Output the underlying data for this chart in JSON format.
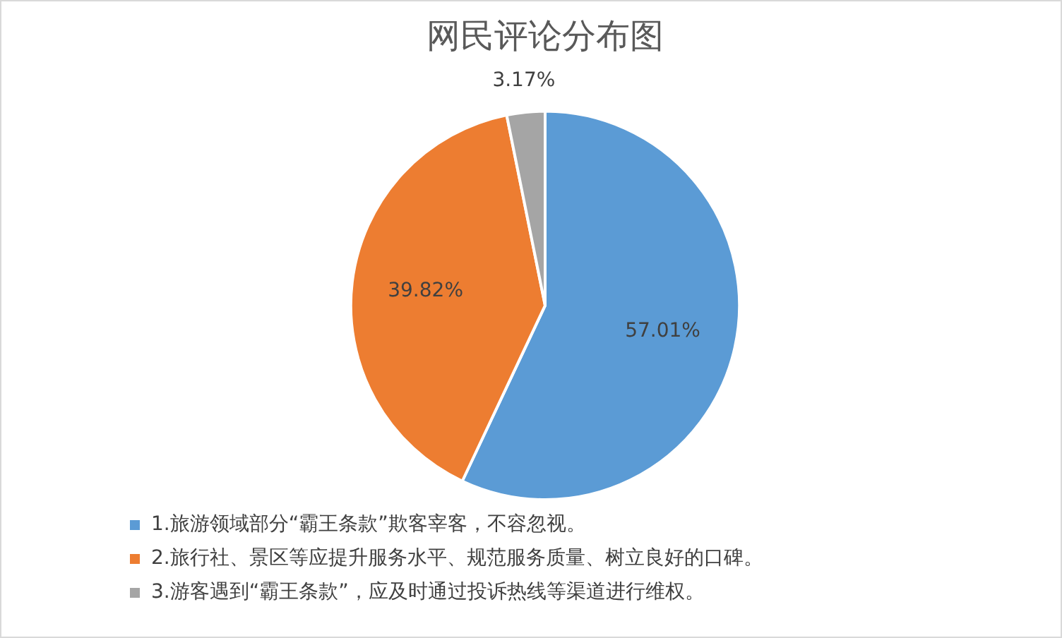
{
  "chart_data": {
    "type": "pie",
    "title": "网民评论分布图",
    "categories": [
      "1.旅游领域部分“霸王条款”欺客宰客，不容忽视。",
      "2.旅行社、景区等应提升服务水平、规范服务质量、树立良好的口碑。",
      "3.游客遇到“霸王条款”，应及时通过投诉热线等渠道进行维权。"
    ],
    "values": [
      57.01,
      39.82,
      3.17
    ],
    "value_labels": [
      "57.01%",
      "39.82%",
      "3.17%"
    ],
    "colors": [
      "#5b9bd5",
      "#ed7d31",
      "#a5a5a5"
    ],
    "legend": "bottom"
  }
}
